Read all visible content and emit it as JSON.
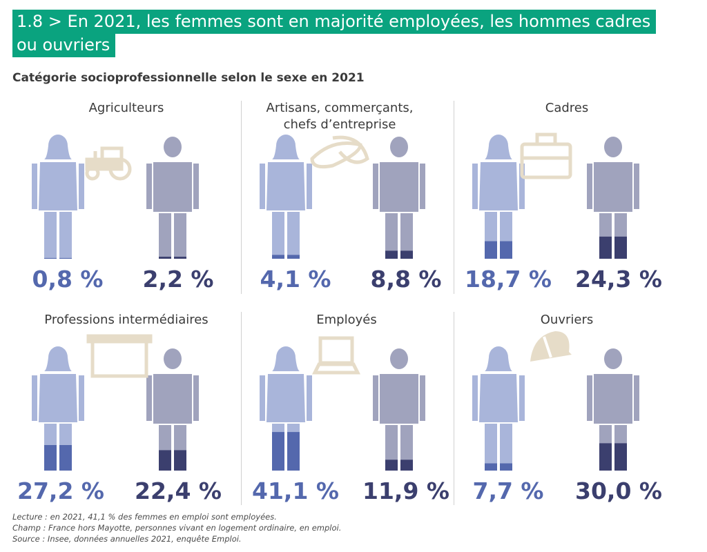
{
  "title": {
    "line1": "1.8 > En 2021, les femmes sont en majorité employées, les hommes cadres",
    "line2": "ou ouvriers"
  },
  "subtitle": "Catégorie socioprofessionnelle selon le sexe en 2021",
  "colors": {
    "title_bg": "#0aa37f",
    "woman_light": "#a9b5da",
    "woman_fill": "#5468ad",
    "man_light": "#a0a3bd",
    "man_fill": "#3b3f6e",
    "icon": "#e6dcc8"
  },
  "chart_data": {
    "type": "pictogram",
    "series": [
      {
        "name": "Femmes",
        "color": "#5468ad"
      },
      {
        "name": "Hommes",
        "color": "#3b3f6e"
      }
    ],
    "panels": [
      {
        "category": "Agriculteurs",
        "icon": "tractor-icon",
        "women": 0.8,
        "men": 2.2,
        "women_label": "0,8 %",
        "men_label": "2,2 %"
      },
      {
        "category": "Artisans, commerçants, chefs d’entreprise",
        "icon": "baguette-icon",
        "women": 4.1,
        "men": 8.8,
        "women_label": "4,1 %",
        "men_label": "8,8 %"
      },
      {
        "category": "Cadres",
        "icon": "briefcase-icon",
        "women": 18.7,
        "men": 24.3,
        "women_label": "18,7 %",
        "men_label": "24,3 %"
      },
      {
        "category": "Professions intermédiaires",
        "icon": "whiteboard-icon",
        "women": 27.2,
        "men": 22.4,
        "women_label": "27,2 %",
        "men_label": "22,4 %"
      },
      {
        "category": "Employés",
        "icon": "laptop-icon",
        "women": 41.1,
        "men": 11.9,
        "women_label": "41,1 %",
        "men_label": "11,9 %"
      },
      {
        "category": "Ouvriers",
        "icon": "hardhat-icon",
        "women": 7.7,
        "men": 30.0,
        "women_label": "7,7 %",
        "men_label": "30,0 %"
      }
    ]
  },
  "notes": {
    "lecture": "Lecture : en 2021, 41,1 % des femmes en emploi sont employées.",
    "champ": "Champ : France hors Mayotte, personnes vivant en logement ordinaire, en emploi.",
    "source": "Source : Insee, données annuelles 2021, enquête Emploi."
  }
}
